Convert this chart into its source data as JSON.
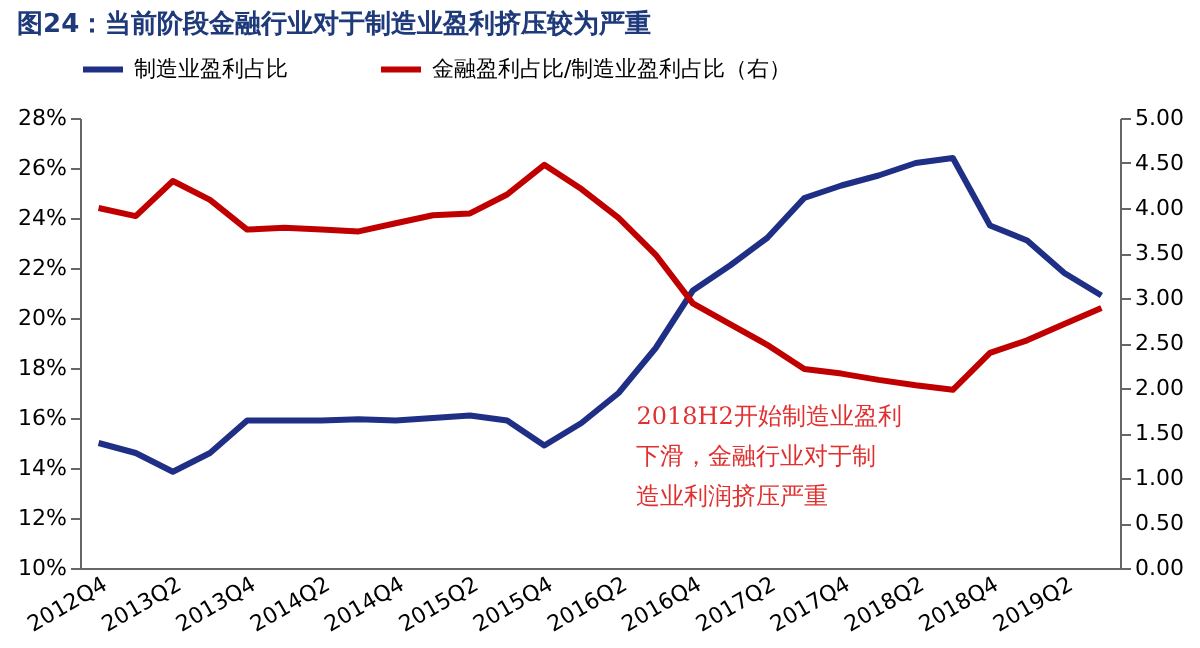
{
  "chart_data": {
    "type": "line",
    "title": "图24：当前阶段金融行业对于制造业盈利挤压较为严重",
    "categories": [
      "2012Q4",
      null,
      "2013Q2",
      null,
      "2013Q4",
      null,
      "2014Q2",
      null,
      "2014Q4",
      null,
      "2015Q2",
      null,
      "2015Q4",
      null,
      "2016Q2",
      null,
      "2016Q4",
      null,
      "2017Q2",
      null,
      "2017Q4",
      null,
      "2018Q2",
      null,
      "2018Q4",
      null,
      "2019Q2",
      null
    ],
    "series": [
      {
        "name": "制造业盈利占比",
        "color": "#1f2f86",
        "values": [
          15.0,
          14.6,
          13.85,
          14.6,
          15.9,
          15.9,
          15.9,
          15.95,
          15.9,
          16.0,
          16.1,
          15.9,
          14.9,
          15.8,
          17.0,
          18.8,
          21.1,
          22.1,
          23.2,
          24.8,
          25.3,
          25.7,
          26.2,
          26.4,
          23.7,
          23.1,
          21.8,
          20.9
        ]
      },
      {
        "name": "金融盈利占比/制造业盈利占比（右）",
        "color": "#c00000",
        "axis": "y2",
        "values": [
          4.0,
          3.91,
          4.3,
          4.09,
          3.76,
          3.78,
          3.76,
          3.74,
          3.83,
          3.92,
          3.94,
          4.15,
          4.48,
          4.21,
          3.89,
          3.48,
          2.94,
          2.71,
          2.48,
          2.21,
          2.16,
          2.09,
          2.03,
          1.98,
          2.39,
          2.53,
          2.71,
          2.89
        ]
      }
    ],
    "ylim": [
      10,
      28
    ],
    "yticks": [
      {
        "value": 10,
        "label": "10%"
      },
      {
        "value": 12,
        "label": "12%"
      },
      {
        "value": 14,
        "label": "14%"
      },
      {
        "value": 16,
        "label": "16%"
      },
      {
        "value": 18,
        "label": "18%"
      },
      {
        "value": 20,
        "label": "20%"
      },
      {
        "value": 22,
        "label": "22%"
      },
      {
        "value": 24,
        "label": "24%"
      },
      {
        "value": 26,
        "label": "26%"
      },
      {
        "value": 28,
        "label": "28%"
      }
    ],
    "y2lim": [
      0,
      5
    ],
    "y2ticks": [
      {
        "value": 0,
        "label": "0.00"
      },
      {
        "value": 0.5,
        "label": "0.50"
      },
      {
        "value": 1,
        "label": "1.00"
      },
      {
        "value": 1.5,
        "label": "1.50"
      },
      {
        "value": 2,
        "label": "2.00"
      },
      {
        "value": 2.5,
        "label": "2.50"
      },
      {
        "value": 3,
        "label": "3.00"
      },
      {
        "value": 3.5,
        "label": "3.50"
      },
      {
        "value": 4,
        "label": "4.00"
      },
      {
        "value": 4.5,
        "label": "4.50"
      },
      {
        "value": 5,
        "label": "5.00"
      }
    ],
    "annotations": [
      "2018H2开始制造业盈利下滑，金融行业对于制造业利润挤压严重"
    ],
    "legend": "top",
    "grid": false,
    "marker": "none",
    "line_style": "solid"
  }
}
